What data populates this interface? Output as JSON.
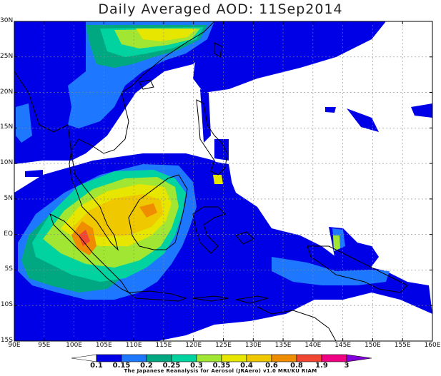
{
  "title": "Daily Averaged AOD: 11Sep2014",
  "lat_labels": [
    "30N",
    "25N",
    "20N",
    "15N",
    "10N",
    "5N",
    "EQ",
    "5S",
    "10S",
    "15S"
  ],
  "lon_labels": [
    "90E",
    "95E",
    "100E",
    "105E",
    "110E",
    "115E",
    "120E",
    "125E",
    "130E",
    "135E",
    "140E",
    "145E",
    "150E",
    "155E",
    "160E"
  ],
  "colorbar": {
    "labels": [
      "0.1",
      "0.15",
      "0.2",
      "0.25",
      "0.3",
      "0.35",
      "0.4",
      "0.6",
      "0.8",
      "1.9",
      "3"
    ],
    "colors": [
      "#ffffff",
      "#0000e6",
      "#1e78ff",
      "#00a882",
      "#00d2a0",
      "#a0e632",
      "#e6e600",
      "#f0c800",
      "#f08c00",
      "#f04632",
      "#f00082",
      "#8200dc"
    ]
  },
  "credit": "The Japanese Reanalysis for Aerosol (JRAero) v1.0  MRI/KU RIAM",
  "colors": {
    "c1": "#0000e6",
    "c2": "#1e78ff",
    "c3": "#00a882",
    "c4": "#00d2a0",
    "c5": "#a0e632",
    "c6": "#e6e600",
    "c7": "#f0c800",
    "c8": "#f08c00",
    "c9": "#f04632"
  }
}
